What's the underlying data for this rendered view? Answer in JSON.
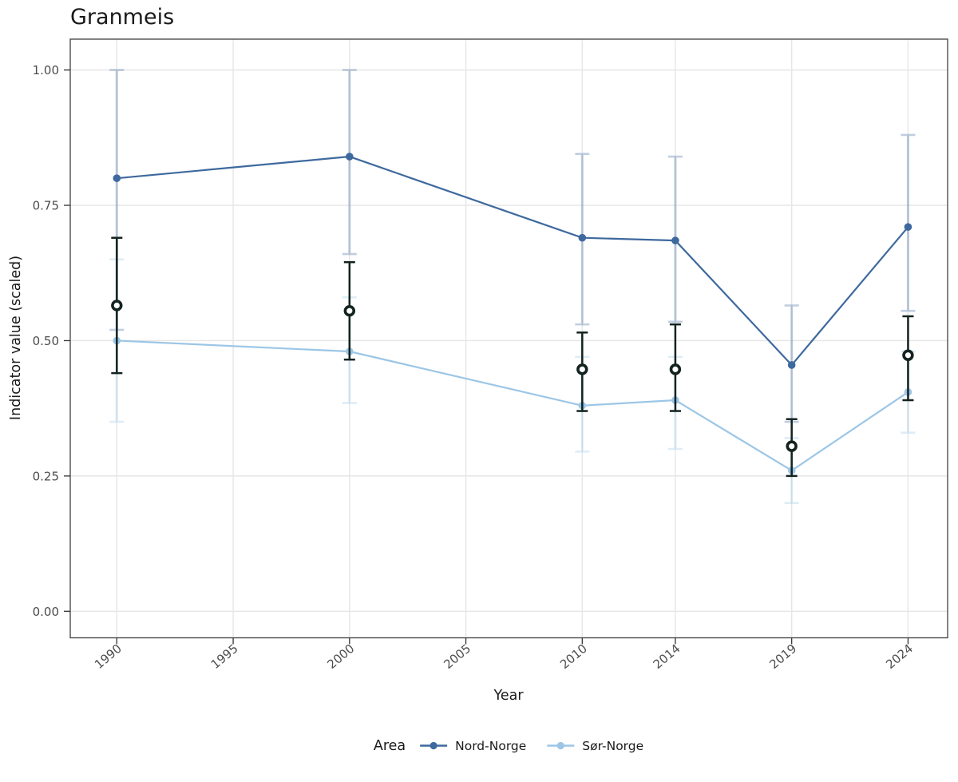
{
  "chart_data": {
    "type": "line",
    "title": "Granmeis",
    "xlabel": "Year",
    "ylabel": "Indicator value (scaled)",
    "legend_title": "Area",
    "legend_position": "bottom",
    "grid": true,
    "x_ticks": [
      1990,
      1995,
      2000,
      2005,
      2010,
      2014,
      2019,
      2024
    ],
    "x_tick_labels": [
      "1990",
      "1995",
      "2000",
      "2005",
      "2010",
      "2014",
      "2019",
      "2024"
    ],
    "y_ticks": [
      0.0,
      0.25,
      0.5,
      0.75,
      1.0
    ],
    "y_tick_labels": [
      "0.00",
      "0.25",
      "0.50",
      "0.75",
      "1.00"
    ],
    "xlim": [
      1988.0,
      2025.7
    ],
    "ylim": [
      -0.049,
      1.057
    ],
    "x": [
      1990,
      2000,
      2010,
      2014,
      2019,
      2024
    ],
    "series": [
      {
        "name": "Nord-Norge",
        "color": "#3E699E",
        "values": [
          0.8,
          0.84,
          0.69,
          0.685,
          0.455,
          0.71
        ],
        "ci_low": [
          0.52,
          0.66,
          0.53,
          0.535,
          0.35,
          0.555
        ],
        "ci_high": [
          1.0,
          1.0,
          0.845,
          0.84,
          0.565,
          0.88
        ]
      },
      {
        "name": "Sør-Norge",
        "color": "#9CC6E6",
        "values": [
          0.5,
          0.48,
          0.38,
          0.39,
          0.26,
          0.405
        ],
        "ci_low": [
          0.35,
          0.385,
          0.295,
          0.3,
          0.2,
          0.33
        ],
        "ci_high": [
          0.65,
          0.58,
          0.47,
          0.47,
          0.32,
          0.48
        ]
      }
    ],
    "overall": {
      "color": "#13231F",
      "values": [
        0.565,
        0.555,
        0.447,
        0.447,
        0.305,
        0.473
      ],
      "ci_low": [
        0.44,
        0.465,
        0.37,
        0.37,
        0.25,
        0.39
      ],
      "ci_high": [
        0.69,
        0.645,
        0.515,
        0.53,
        0.355,
        0.545
      ]
    },
    "style": {
      "grid_color": "#E6E6E6",
      "panel_border_color": "#404040",
      "tick_color": "#333333",
      "tick_label_color": "#4D4D4D",
      "title_color": "#1A1A1A",
      "ci_alpha": 0.32,
      "background": "#FFFFFF"
    }
  }
}
